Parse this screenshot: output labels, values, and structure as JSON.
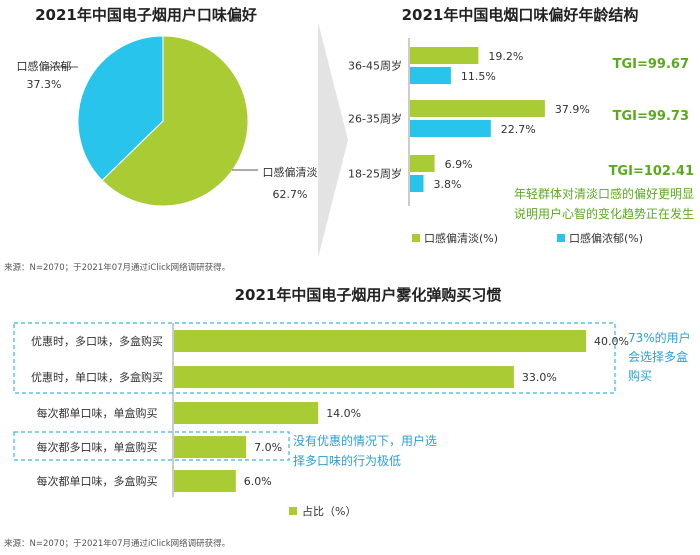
{
  "colors": {
    "green": "#a9cc34",
    "blue": "#29c4ec",
    "callout_green": "#5aaa1e",
    "callout_blue": "#2d9fd6",
    "dash_blue": "#3ab6e8",
    "arrow_grey": "#e3e3e3",
    "text": "#333333",
    "source": "#555555"
  },
  "chart_data": [
    {
      "type": "pie",
      "title": "2021年中国电子烟用户口味偏好",
      "slices": [
        {
          "label": "口感偏清淡",
          "value": 62.7,
          "display": "62.7%"
        },
        {
          "label": "口感偏浓郁",
          "value": 37.3,
          "display": "37.3%"
        }
      ]
    },
    {
      "type": "bar",
      "orientation": "horizontal",
      "title": "2021年中国电烟口味偏好年龄结构",
      "categories": [
        "36-45周岁",
        "26-35周岁",
        "18-25周岁"
      ],
      "series": [
        {
          "name": "口感偏清淡(%)",
          "values": [
            19.2,
            37.9,
            6.9
          ],
          "labels": [
            "19.2%",
            "37.9%",
            "6.9%"
          ]
        },
        {
          "name": "口感偏浓郁(%)",
          "values": [
            11.5,
            22.7,
            3.8
          ],
          "labels": [
            "11.5%",
            "22.7%",
            "3.8%"
          ]
        }
      ],
      "tgi": [
        "TGI=99.67",
        "TGI=99.73",
        "TGI=102.41"
      ],
      "annotation": [
        "年轻群体对清淡口感的偏好更明显",
        "说明用户心智的变化趋势正在发生"
      ],
      "xlim": [
        0,
        40
      ]
    },
    {
      "type": "bar",
      "orientation": "horizontal",
      "title": "2021年中国电子烟用户雾化弹购买习惯",
      "categories": [
        "优惠时，多口味，多盒购买",
        "优惠时，单口味，多盒购买",
        "每次都单口味，单盒购买",
        "每次都多口味，单盒购买",
        "每次都单口味，多盒购买"
      ],
      "series": [
        {
          "name": "占比（%）",
          "values": [
            40.0,
            33.0,
            14.0,
            7.0,
            6.0
          ],
          "labels": [
            "40.0%",
            "33.0%",
            "14.0%",
            "7.0%",
            "6.0%"
          ]
        }
      ],
      "annotations": [
        [
          "73%的用户",
          "会选择多盒",
          "购买"
        ],
        [
          "没有优惠的情况下，用户选",
          "择多口味的行为极低"
        ]
      ],
      "xlim": [
        0,
        40
      ]
    }
  ],
  "sources": {
    "top": "来源：N=2070；于2021年07月通过iClick网络调研获得。",
    "bottom": "来源：N=2070；于2021年07月通过iClick网络调研获得。"
  }
}
